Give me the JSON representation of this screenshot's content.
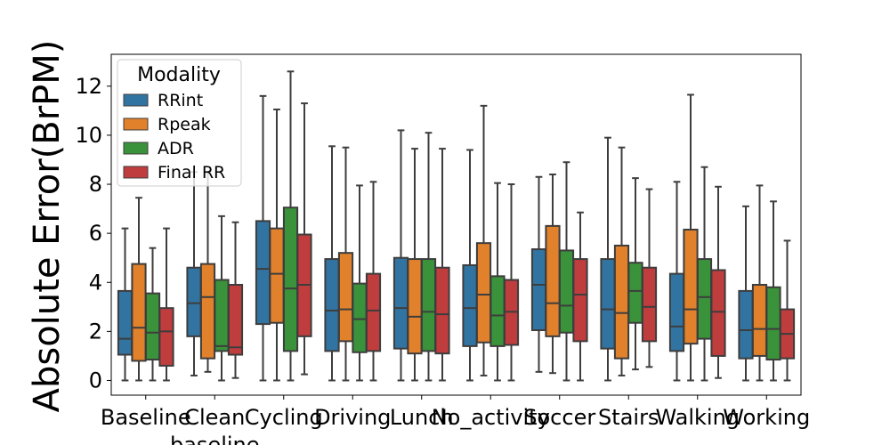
{
  "chart_data": {
    "type": "box",
    "ylabel": "Absolute Error(BrPM)",
    "ylim": [
      -0.6,
      13.3
    ],
    "yticks": [
      0,
      2,
      4,
      6,
      8,
      10,
      12
    ],
    "categories": [
      "Baseline",
      "Clean\nbaseline",
      "Cycling",
      "Driving",
      "Lunch",
      "No_activity",
      "Soccer",
      "Stairs",
      "Walking",
      "Working"
    ],
    "legend": {
      "title": "Modality",
      "placement": "top-left"
    },
    "series": [
      {
        "name": "RRint",
        "color": "#3274a1",
        "boxes": [
          {
            "whislo": 0,
            "q1": 1.05,
            "med": 1.7,
            "q3": 3.65,
            "whishi": 6.2
          },
          {
            "whislo": 0.2,
            "q1": 1.8,
            "med": 3.15,
            "q3": 4.6,
            "whishi": 8.5
          },
          {
            "whislo": 0,
            "q1": 2.3,
            "med": 4.55,
            "q3": 6.5,
            "whishi": 11.6
          },
          {
            "whislo": 0,
            "q1": 1.2,
            "med": 2.85,
            "q3": 4.95,
            "whishi": 9.55
          },
          {
            "whislo": 0,
            "q1": 1.3,
            "med": 2.95,
            "q3": 5.0,
            "whishi": 10.2
          },
          {
            "whislo": 0,
            "q1": 1.4,
            "med": 2.95,
            "q3": 4.7,
            "whishi": 9.4
          },
          {
            "whislo": 0.35,
            "q1": 2.05,
            "med": 3.9,
            "q3": 5.35,
            "whishi": 8.3
          },
          {
            "whislo": 0,
            "q1": 1.3,
            "med": 2.9,
            "q3": 4.95,
            "whishi": 9.9
          },
          {
            "whislo": 0,
            "q1": 1.2,
            "med": 2.2,
            "q3": 4.35,
            "whishi": 8.1
          },
          {
            "whislo": 0,
            "q1": 0.9,
            "med": 2.05,
            "q3": 3.65,
            "whishi": 7.1
          }
        ]
      },
      {
        "name": "Rpeak",
        "color": "#e1812c",
        "boxes": [
          {
            "whislo": 0,
            "q1": 0.8,
            "med": 2.15,
            "q3": 4.75,
            "whishi": 7.45
          },
          {
            "whislo": 0.35,
            "q1": 0.9,
            "med": 3.4,
            "q3": 4.75,
            "whishi": 8.5
          },
          {
            "whislo": 0,
            "q1": 2.35,
            "med": 4.35,
            "q3": 6.2,
            "whishi": 11.05
          },
          {
            "whislo": 0,
            "q1": 1.6,
            "med": 2.9,
            "q3": 5.2,
            "whishi": 9.5
          },
          {
            "whislo": 0,
            "q1": 1.1,
            "med": 2.6,
            "q3": 4.95,
            "whishi": 9.45
          },
          {
            "whislo": 0.2,
            "q1": 1.55,
            "med": 3.5,
            "q3": 5.6,
            "whishi": 11.2
          },
          {
            "whislo": 0.3,
            "q1": 1.8,
            "med": 3.15,
            "q3": 6.3,
            "whishi": 8.4
          },
          {
            "whislo": 0.2,
            "q1": 0.9,
            "med": 2.75,
            "q3": 5.5,
            "whishi": 9.5
          },
          {
            "whislo": 0,
            "q1": 1.5,
            "med": 2.9,
            "q3": 6.15,
            "whishi": 11.65
          },
          {
            "whislo": 0,
            "q1": 1.0,
            "med": 2.1,
            "q3": 3.9,
            "whishi": 7.95
          }
        ]
      },
      {
        "name": "ADR",
        "color": "#3a923a",
        "boxes": [
          {
            "whislo": 0,
            "q1": 0.85,
            "med": 1.95,
            "q3": 3.55,
            "whishi": 5.4
          },
          {
            "whislo": 0,
            "q1": 1.2,
            "med": 1.4,
            "q3": 4.1,
            "whishi": 6.7
          },
          {
            "whislo": 0,
            "q1": 1.2,
            "med": 3.75,
            "q3": 7.05,
            "whishi": 12.6
          },
          {
            "whislo": 0,
            "q1": 1.15,
            "med": 2.5,
            "q3": 3.95,
            "whishi": 7.95
          },
          {
            "whislo": 0,
            "q1": 1.2,
            "med": 2.8,
            "q3": 4.95,
            "whishi": 10.1
          },
          {
            "whislo": 0,
            "q1": 1.4,
            "med": 2.65,
            "q3": 4.25,
            "whishi": 8.05
          },
          {
            "whislo": 0,
            "q1": 1.95,
            "med": 3.05,
            "q3": 5.3,
            "whishi": 8.9
          },
          {
            "whislo": 0.45,
            "q1": 2.35,
            "med": 3.65,
            "q3": 4.8,
            "whishi": 8.25
          },
          {
            "whislo": 0,
            "q1": 1.7,
            "med": 3.4,
            "q3": 4.95,
            "whishi": 8.7
          },
          {
            "whislo": 0,
            "q1": 0.85,
            "med": 2.1,
            "q3": 3.8,
            "whishi": 7.3
          }
        ]
      },
      {
        "name": "Final RR",
        "color": "#c03d3e",
        "boxes": [
          {
            "whislo": 0,
            "q1": 0.6,
            "med": 2.0,
            "q3": 2.95,
            "whishi": 6.2
          },
          {
            "whislo": 0.1,
            "q1": 1.05,
            "med": 1.35,
            "q3": 3.9,
            "whishi": 6.45
          },
          {
            "whislo": 0.25,
            "q1": 1.8,
            "med": 3.9,
            "q3": 5.95,
            "whishi": 11.3
          },
          {
            "whislo": 0,
            "q1": 1.2,
            "med": 2.85,
            "q3": 4.35,
            "whishi": 8.1
          },
          {
            "whislo": 0,
            "q1": 1.1,
            "med": 2.7,
            "q3": 4.6,
            "whishi": 9.45
          },
          {
            "whislo": 0,
            "q1": 1.45,
            "med": 2.8,
            "q3": 4.1,
            "whishi": 8.0
          },
          {
            "whislo": 0,
            "q1": 1.6,
            "med": 3.5,
            "q3": 4.95,
            "whishi": 6.85
          },
          {
            "whislo": 0.55,
            "q1": 1.6,
            "med": 3.0,
            "q3": 4.6,
            "whishi": 7.8
          },
          {
            "whislo": 0.1,
            "q1": 1.0,
            "med": 2.8,
            "q3": 4.5,
            "whishi": 7.9
          },
          {
            "whislo": 0,
            "q1": 0.9,
            "med": 1.9,
            "q3": 2.9,
            "whishi": 5.7
          }
        ]
      }
    ]
  }
}
